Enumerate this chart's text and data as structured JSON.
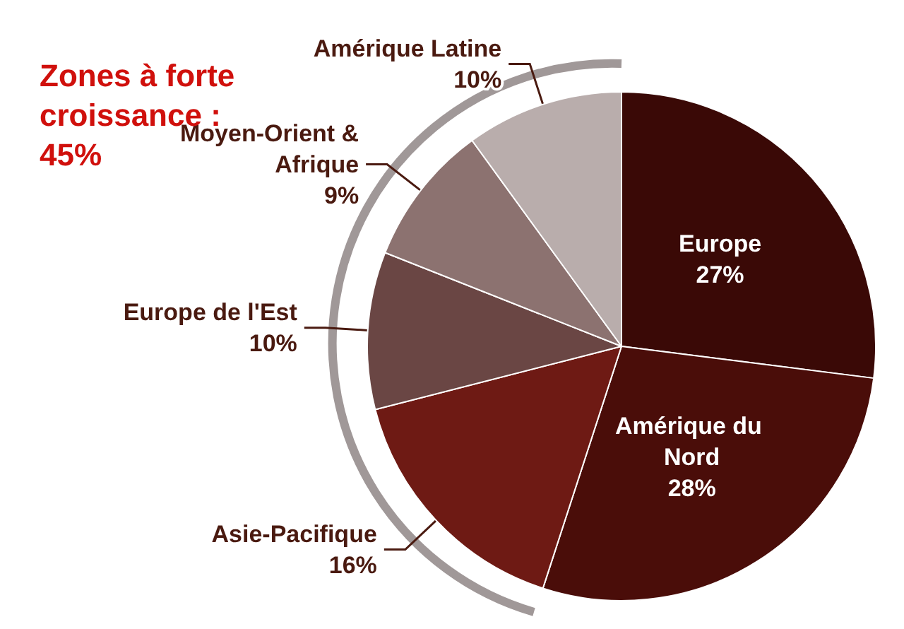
{
  "chart_data": {
    "type": "pie",
    "categories": [
      "Europe",
      "Amérique du Nord",
      "Asie-Pacifique",
      "Europe de l'Est",
      "Moyen-Orient &\nAfrique",
      "Amérique Latine"
    ],
    "values": [
      27,
      28,
      16,
      10,
      9,
      10
    ],
    "value_labels": [
      "27%",
      "28%",
      "16%",
      "10%",
      "9%",
      "10%"
    ],
    "colors": [
      "#3a0906",
      "#4a0d09",
      "#6e1a14",
      "#6a4644",
      "#8c7270",
      "#b9adac"
    ],
    "annotations": [
      "Zones à forte\ncroissance :\n45%"
    ],
    "legend": false
  }
}
